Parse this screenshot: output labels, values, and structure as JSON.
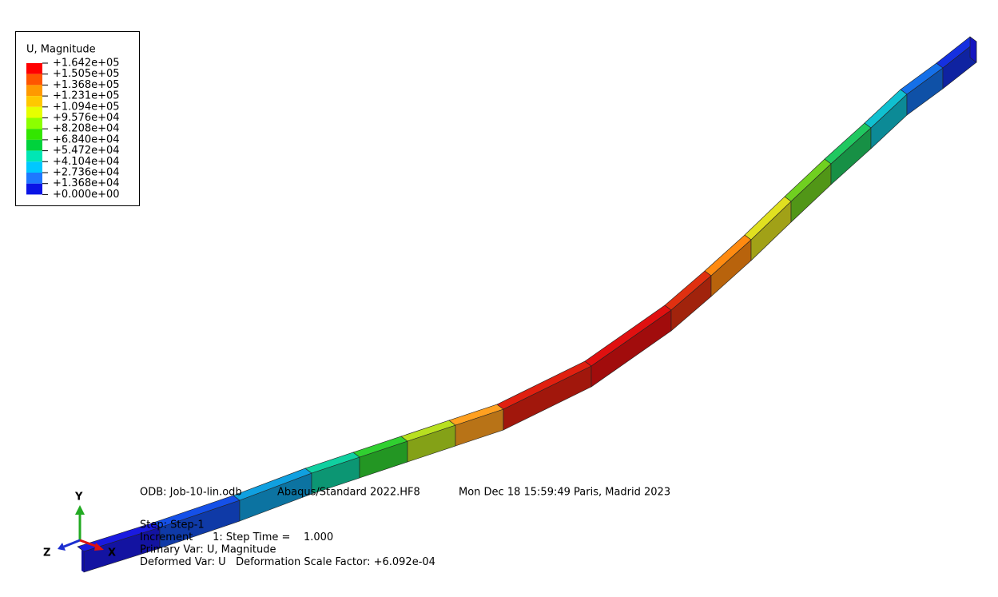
{
  "legend": {
    "title": "U, Magnitude",
    "labels": [
      "+1.642e+05",
      "+1.505e+05",
      "+1.368e+05",
      "+1.231e+05",
      "+1.094e+05",
      "+9.576e+04",
      "+8.208e+04",
      "+6.840e+04",
      "+5.472e+04",
      "+4.104e+04",
      "+2.736e+04",
      "+1.368e+04",
      "+0.000e+00"
    ]
  },
  "info": {
    "odb": "ODB: Job-10-lin.odb",
    "solver": "Abaqus/Standard 2022.HF8",
    "date": "Mon Dec 18 15:59:49 Paris, Madrid 2023",
    "lines": [
      "Step: Step-1",
      "Increment      1: Step Time =    1.000",
      "Primary Var: U, Magnitude",
      "Deformed Var: U   Deformation Scale Factor: +6.092e-04"
    ]
  },
  "triad": {
    "y": "Y",
    "z": "Z",
    "x": "X"
  }
}
